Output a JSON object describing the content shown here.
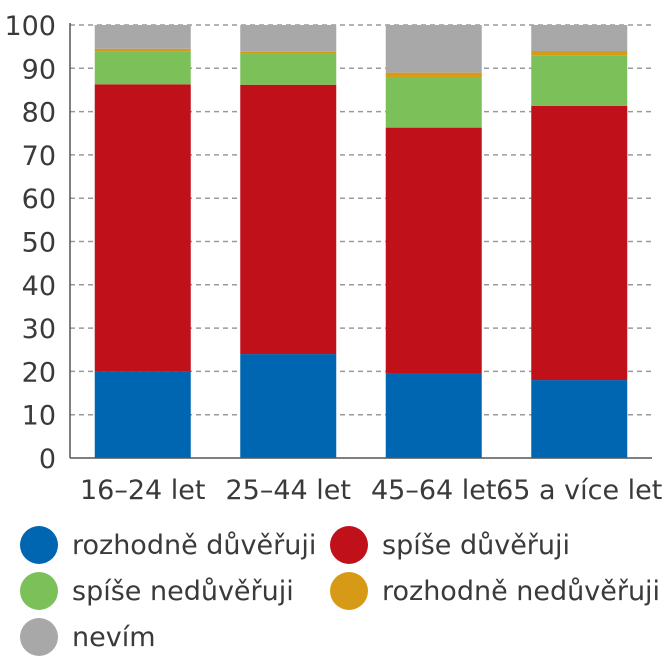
{
  "chart_data": {
    "type": "bar",
    "stacked": true,
    "categories": [
      "16–24 let",
      "25–44 let",
      "45–64 let",
      "65 a více let"
    ],
    "series": [
      {
        "name": "rozhodně důvěřuji",
        "color": "#0066b2",
        "values": [
          20,
          24,
          19.5,
          18
        ]
      },
      {
        "name": "spíše důvěřuji",
        "color": "#c0111a",
        "values": [
          66.3,
          62.2,
          56.8,
          63.3
        ]
      },
      {
        "name": "spíše nedůvěřuji",
        "color": "#7cc05a",
        "values": [
          7.5,
          7.2,
          11.7,
          11.7
        ]
      },
      {
        "name": "rozhodně nedůvěřuji",
        "color": "#d69a16",
        "values": [
          0.7,
          0.4,
          1.0,
          1.0
        ]
      },
      {
        "name": "nevím",
        "color": "#a8a8a8",
        "values": [
          5.5,
          6.2,
          11.0,
          6.0
        ]
      }
    ],
    "ylim": [
      0,
      100
    ],
    "yticks": [
      0,
      10,
      20,
      30,
      40,
      50,
      60,
      70,
      80,
      90,
      100
    ],
    "grid": true,
    "legend_position": "bottom"
  }
}
